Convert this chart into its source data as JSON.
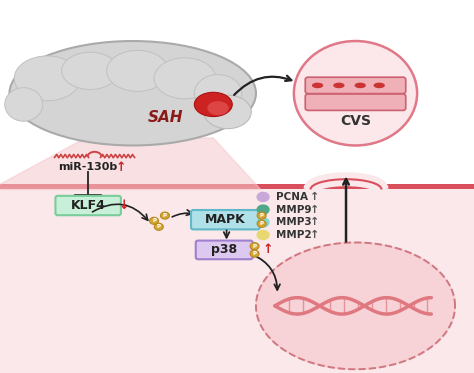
{
  "bg_top": "#ffffff",
  "bg_bottom": "#fae8ea",
  "band_color": "#d94f5c",
  "band_fill": "#e8a0a8",
  "sah_text": "SAH",
  "cvs_text": "CVS",
  "mir_text": "miR-130b",
  "klf_text": "KLF4",
  "mapk_text": "MAPK",
  "p38_text": "p38",
  "pcna_text": "PCNA",
  "mmp9_text": "MMP9",
  "mmp3_text": "MMP3",
  "mmp2_text": "MMP2",
  "klf_box_color": "#c8f0d8",
  "klf_box_edge": "#7acc9a",
  "mapk_box_color": "#b0e0e8",
  "mapk_box_edge": "#60b8c8",
  "p38_box_color": "#ddc8f0",
  "p38_box_edge": "#a080cc",
  "phospho_color": "#d4a832",
  "phospho_edge": "#b88820",
  "pcna_color": "#c8a8d8",
  "mmp9_color": "#50a888",
  "mmp3_color": "#80d8d8",
  "mmp2_color": "#e8d870",
  "arrow_dark": "#222222",
  "red_color": "#cc2222",
  "brain_gray": "#d4d4d4",
  "brain_edge": "#aaaaaa",
  "cvs_circle_fill": "#fce8ea",
  "cvs_circle_edge": "#e07888",
  "vessel_fill": "#f0b0b8",
  "vessel_edge": "#cc6070",
  "rbc_color": "#cc3333",
  "cell_fill": "#f5c0c8",
  "cell_edge": "#d07880",
  "dna_color": "#e07880",
  "mir_symbol_color": "#cc4444"
}
